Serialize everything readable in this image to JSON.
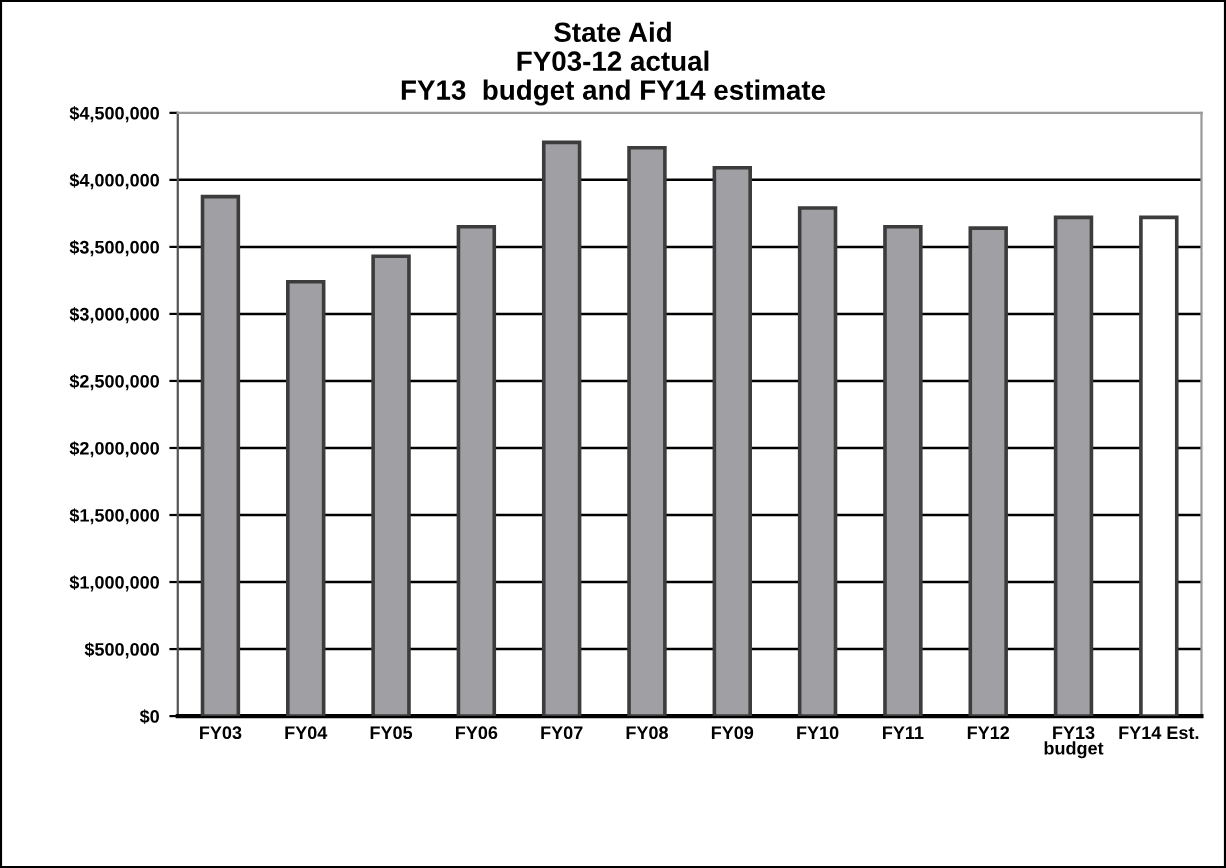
{
  "chart_data": {
    "type": "bar",
    "title": "State Aid\nFY03-12 actual\nFY13  budget and FY14 estimate",
    "categories": [
      "FY03",
      "FY04",
      "FY05",
      "FY06",
      "FY07",
      "FY08",
      "FY09",
      "FY10",
      "FY11",
      "FY12",
      "FY13\nbudget",
      "FY14 Est."
    ],
    "values": [
      3875000,
      3240000,
      3430000,
      3650000,
      4280000,
      4240000,
      4090000,
      3790000,
      3650000,
      3640000,
      3720000,
      3720000
    ],
    "colors": [
      "#a0a0a4",
      "#a0a0a4",
      "#a0a0a4",
      "#a0a0a4",
      "#a0a0a4",
      "#a0a0a4",
      "#a0a0a4",
      "#a0a0a4",
      "#a0a0a4",
      "#a0a0a4",
      "#a0a0a4",
      "#ffffff"
    ],
    "ylim": [
      0,
      4500000
    ],
    "yticks": [
      {
        "value": 0,
        "label": "$0"
      },
      {
        "value": 500000,
        "label": "$500,000"
      },
      {
        "value": 1000000,
        "label": "$1,000,000"
      },
      {
        "value": 1500000,
        "label": "$1,500,000"
      },
      {
        "value": 2000000,
        "label": "$2,000,000"
      },
      {
        "value": 2500000,
        "label": "$2,500,000"
      },
      {
        "value": 3000000,
        "label": "$3,000,000"
      },
      {
        "value": 3500000,
        "label": "$3,500,000"
      },
      {
        "value": 4000000,
        "label": "$4,000,000"
      },
      {
        "value": 4500000,
        "label": "$4,500,000"
      }
    ],
    "grid": "y"
  }
}
